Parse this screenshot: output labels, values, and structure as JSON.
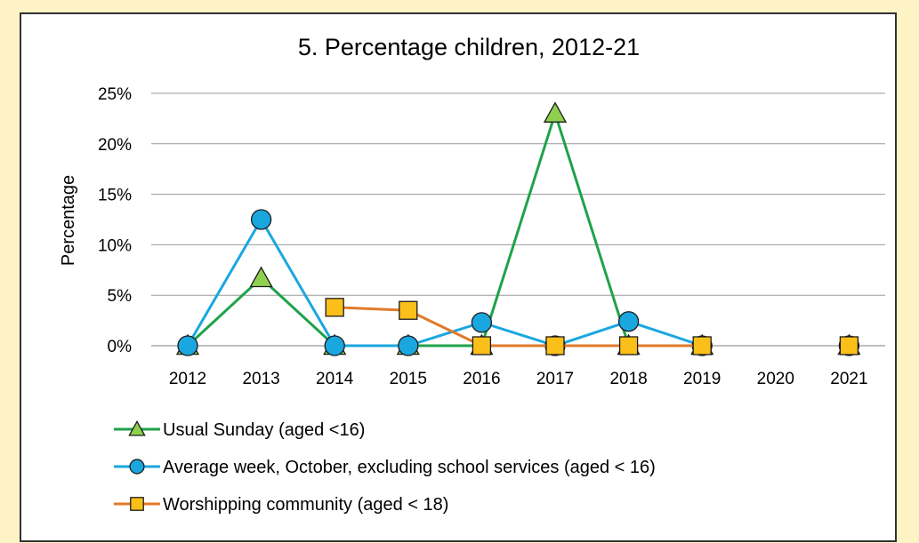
{
  "chart_data": {
    "type": "line",
    "title": "5. Percentage children, 2012-21",
    "xlabel": "",
    "ylabel": "Percentage",
    "categories": [
      "2012",
      "2013",
      "2014",
      "2015",
      "2016",
      "2017",
      "2018",
      "2019",
      "2020",
      "2021"
    ],
    "ylim": [
      0,
      25
    ],
    "yticks": [
      "0%",
      "5%",
      "10%",
      "15%",
      "20%",
      "25%"
    ],
    "grid": true,
    "legend_position": "bottom",
    "series": [
      {
        "name": "Usual Sunday (aged <16)",
        "color": "#1fa24a",
        "marker": "triangle",
        "marker_fill": "#8fd14f",
        "values": [
          0,
          6.7,
          0,
          0,
          0,
          23,
          0,
          0,
          null,
          0
        ]
      },
      {
        "name": "Average week, October, excluding school services (aged < 16)",
        "color": "#1aa7e0",
        "marker": "circle",
        "marker_fill": "#1aa7e0",
        "values": [
          0,
          12.5,
          0,
          0,
          2.3,
          0,
          2.4,
          0,
          null,
          0
        ]
      },
      {
        "name": "Worshipping community (aged < 18)",
        "color": "#e07a2a",
        "marker": "square",
        "marker_fill": "#fbbf1a",
        "values": [
          null,
          null,
          3.8,
          3.5,
          0,
          0,
          0,
          0,
          null,
          0
        ]
      }
    ]
  }
}
